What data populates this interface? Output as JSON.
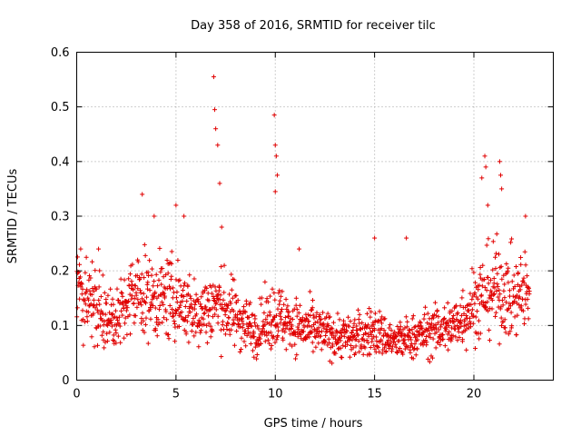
{
  "chart_data": {
    "type": "scatter",
    "title": "Day 358 of 2016, SRMTID for receiver tilc",
    "xlabel": "GPS time / hours",
    "ylabel": "SRMTID / TECUs",
    "xlim": [
      0,
      24
    ],
    "ylim": [
      0,
      0.6
    ],
    "xticks": [
      0,
      5,
      10,
      15,
      20
    ],
    "xtick_labels": [
      "0",
      "5",
      "10",
      "15",
      "20"
    ],
    "yticks": [
      0,
      0.1,
      0.2,
      0.3,
      0.4,
      0.5,
      0.6
    ],
    "ytick_labels": [
      "0",
      "0.1",
      "0.2",
      "0.3",
      "0.4",
      "0.5",
      "0.6"
    ],
    "grid": true,
    "marker": "+",
    "color": "#e00000",
    "trend": [
      {
        "x": 0.0,
        "y": 0.17
      },
      {
        "x": 1.0,
        "y": 0.13
      },
      {
        "x": 2.0,
        "y": 0.11
      },
      {
        "x": 3.0,
        "y": 0.16
      },
      {
        "x": 4.0,
        "y": 0.15
      },
      {
        "x": 5.0,
        "y": 0.15
      },
      {
        "x": 6.0,
        "y": 0.12
      },
      {
        "x": 7.0,
        "y": 0.14
      },
      {
        "x": 8.0,
        "y": 0.12
      },
      {
        "x": 9.0,
        "y": 0.09
      },
      {
        "x": 10.0,
        "y": 0.12
      },
      {
        "x": 11.0,
        "y": 0.1
      },
      {
        "x": 12.0,
        "y": 0.09
      },
      {
        "x": 13.0,
        "y": 0.08
      },
      {
        "x": 14.0,
        "y": 0.08
      },
      {
        "x": 15.0,
        "y": 0.09
      },
      {
        "x": 16.0,
        "y": 0.07
      },
      {
        "x": 17.0,
        "y": 0.08
      },
      {
        "x": 18.0,
        "y": 0.09
      },
      {
        "x": 19.0,
        "y": 0.1
      },
      {
        "x": 20.0,
        "y": 0.14
      },
      {
        "x": 21.0,
        "y": 0.17
      },
      {
        "x": 22.0,
        "y": 0.15
      },
      {
        "x": 22.8,
        "y": 0.16
      }
    ],
    "spikes": [
      {
        "x": 0.2,
        "y": 0.24
      },
      {
        "x": 1.1,
        "y": 0.24
      },
      {
        "x": 3.3,
        "y": 0.34
      },
      {
        "x": 3.9,
        "y": 0.3
      },
      {
        "x": 5.0,
        "y": 0.32
      },
      {
        "x": 5.4,
        "y": 0.3
      },
      {
        "x": 6.9,
        "y": 0.555
      },
      {
        "x": 6.95,
        "y": 0.495
      },
      {
        "x": 7.0,
        "y": 0.46
      },
      {
        "x": 7.1,
        "y": 0.43
      },
      {
        "x": 7.2,
        "y": 0.36
      },
      {
        "x": 7.3,
        "y": 0.28
      },
      {
        "x": 9.95,
        "y": 0.485
      },
      {
        "x": 10.0,
        "y": 0.43
      },
      {
        "x": 10.05,
        "y": 0.41
      },
      {
        "x": 10.1,
        "y": 0.375
      },
      {
        "x": 10.0,
        "y": 0.345
      },
      {
        "x": 11.2,
        "y": 0.24
      },
      {
        "x": 15.0,
        "y": 0.26
      },
      {
        "x": 16.6,
        "y": 0.26
      },
      {
        "x": 20.4,
        "y": 0.37
      },
      {
        "x": 20.55,
        "y": 0.41
      },
      {
        "x": 20.6,
        "y": 0.39
      },
      {
        "x": 20.7,
        "y": 0.32
      },
      {
        "x": 21.3,
        "y": 0.4
      },
      {
        "x": 21.35,
        "y": 0.375
      },
      {
        "x": 21.4,
        "y": 0.35
      },
      {
        "x": 22.6,
        "y": 0.3
      }
    ]
  }
}
